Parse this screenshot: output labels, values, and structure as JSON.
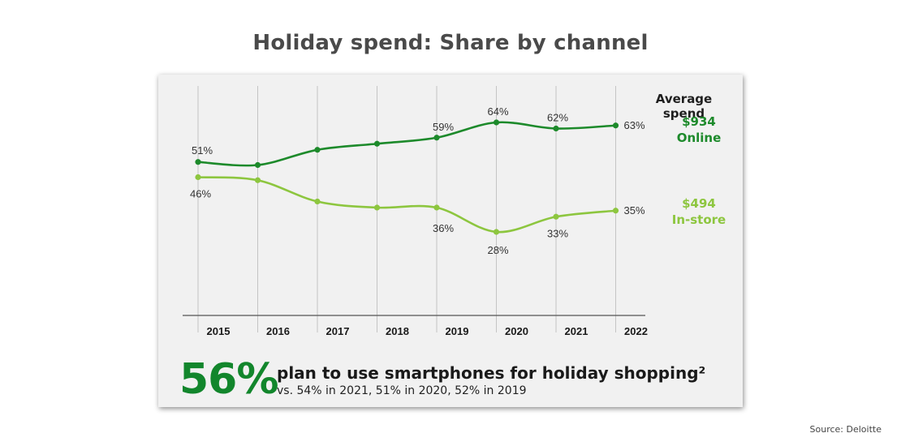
{
  "page": {
    "title": "Holiday spend: Share by channel",
    "source": "Source: Deloitte"
  },
  "legend": {
    "heading": "Average spend",
    "online": {
      "amount": "$934",
      "label": "Online",
      "color": "#1d8a2b"
    },
    "instore": {
      "amount": "$494",
      "label": "In-store",
      "color": "#8dc63f"
    }
  },
  "stat": {
    "value": "56%",
    "text": "plan to use smartphones for holiday shopping²",
    "subtext": "vs. 54% in 2021, 51% in 2020, 52% in 2019"
  },
  "chart_data": {
    "type": "line",
    "title": "Holiday spend: Share by channel",
    "x": [
      "2015",
      "2016",
      "2017",
      "2018",
      "2019",
      "2020",
      "2021",
      "2022"
    ],
    "ylim": [
      0,
      80
    ],
    "series": [
      {
        "name": "Online",
        "values": [
          51,
          50,
          55,
          57,
          59,
          64,
          62,
          63
        ],
        "labels": [
          "51%",
          null,
          null,
          null,
          "59%",
          "64%",
          "62%",
          "63%"
        ],
        "color": "#1d8a2b"
      },
      {
        "name": "In-store",
        "values": [
          46,
          45,
          38,
          36,
          36,
          28,
          33,
          35
        ],
        "labels": [
          "46%",
          null,
          null,
          null,
          "36%",
          "28%",
          "33%",
          "35%"
        ],
        "color": "#8dc63f"
      }
    ]
  }
}
